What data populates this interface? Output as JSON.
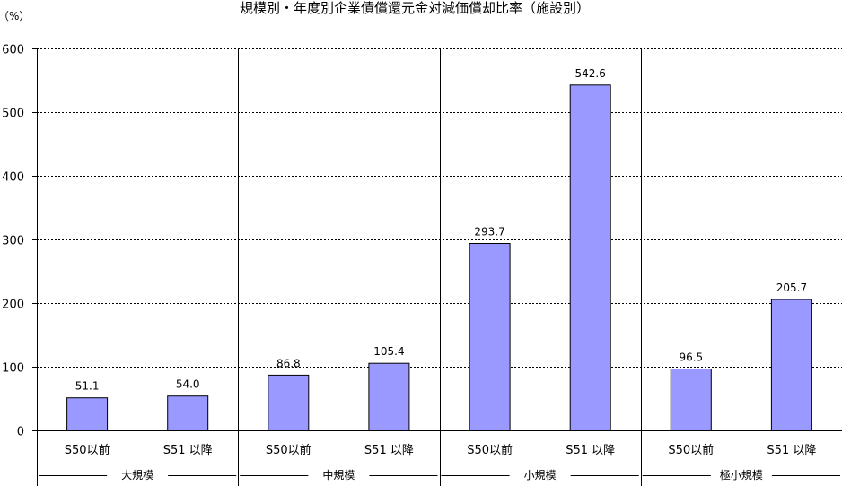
{
  "chart_data": {
    "type": "bar",
    "title": "規模別・年度別企業債償還元金対減価償却比率（施設別）",
    "ylabel": "（%）",
    "ylim": [
      0,
      600
    ],
    "yticks": [
      0,
      100,
      200,
      300,
      400,
      500,
      600
    ],
    "grid": "horizontal dashed",
    "legend": "none",
    "groups": [
      "大規模",
      "中規模",
      "小規模",
      "極小規模"
    ],
    "categories": [
      "S50以前",
      "S51 以降",
      "S50以前",
      "S51 以降",
      "S50以前",
      "S51 以降",
      "S50以前",
      "S51 以降"
    ],
    "values": [
      51.1,
      54.0,
      86.8,
      105.4,
      293.7,
      542.6,
      96.5,
      205.7
    ],
    "value_labels": [
      "51.1",
      "54.0",
      "86.8",
      "105.4",
      "293.7",
      "542.6",
      "96.5",
      "205.7"
    ],
    "colors": {
      "bar_fill": "#9999ff",
      "bar_stroke": "#000000",
      "axis": "#000000",
      "grid": "#000000"
    }
  }
}
